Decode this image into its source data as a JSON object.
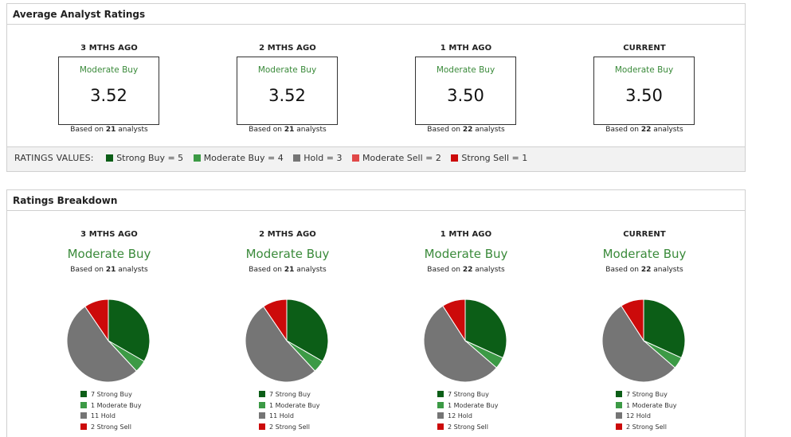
{
  "avg_panel": {
    "title": "Average Analyst Ratings",
    "columns": [
      {
        "period": "3 MTHS AGO",
        "rating": "Moderate Buy",
        "value": "3.52",
        "based_prefix": "Based on ",
        "count": "21",
        "based_suffix": " analysts"
      },
      {
        "period": "2 MTHS AGO",
        "rating": "Moderate Buy",
        "value": "3.52",
        "based_prefix": "Based on ",
        "count": "21",
        "based_suffix": " analysts"
      },
      {
        "period": "1 MTH AGO",
        "rating": "Moderate Buy",
        "value": "3.50",
        "based_prefix": "Based on ",
        "count": "22",
        "based_suffix": " analysts"
      },
      {
        "period": "CURRENT",
        "rating": "Moderate Buy",
        "value": "3.50",
        "based_prefix": "Based on ",
        "count": "22",
        "based_suffix": " analysts"
      }
    ],
    "ratings_values_title": "RATINGS VALUES:",
    "ratings_values": [
      {
        "label": "Strong Buy = 5",
        "color": "#0c5e17"
      },
      {
        "label": "Moderate Buy = 4",
        "color": "#3c9a45"
      },
      {
        "label": "Hold = 3",
        "color": "#757575"
      },
      {
        "label": "Moderate Sell = 2",
        "color": "#e04848"
      },
      {
        "label": "Strong Sell = 1",
        "color": "#cc0a0a"
      }
    ]
  },
  "breakdown_panel": {
    "title": "Ratings Breakdown",
    "columns": [
      {
        "period": "3 MTHS AGO",
        "rating": "Moderate Buy",
        "based_prefix": "Based on ",
        "count": "21",
        "based_suffix": " analysts",
        "legend": [
          "7 Strong Buy",
          "1 Moderate Buy",
          "11 Hold",
          "2 Strong Sell"
        ]
      },
      {
        "period": "2 MTHS AGO",
        "rating": "Moderate Buy",
        "based_prefix": "Based on ",
        "count": "21",
        "based_suffix": " analysts",
        "legend": [
          "7 Strong Buy",
          "1 Moderate Buy",
          "11 Hold",
          "2 Strong Sell"
        ]
      },
      {
        "period": "1 MTH AGO",
        "rating": "Moderate Buy",
        "based_prefix": "Based on ",
        "count": "22",
        "based_suffix": " analysts",
        "legend": [
          "7 Strong Buy",
          "1 Moderate Buy",
          "12 Hold",
          "2 Strong Sell"
        ]
      },
      {
        "period": "CURRENT",
        "rating": "Moderate Buy",
        "based_prefix": "Based on ",
        "count": "22",
        "based_suffix": " analysts",
        "legend": [
          "7 Strong Buy",
          "1 Moderate Buy",
          "12 Hold",
          "2 Strong Sell"
        ]
      }
    ]
  },
  "chart_data": [
    {
      "type": "pie",
      "categories": [
        "Strong Buy",
        "Moderate Buy",
        "Hold",
        "Strong Sell"
      ],
      "values": [
        7,
        1,
        11,
        2
      ],
      "colors": [
        "#0c5e17",
        "#3c9a45",
        "#757575",
        "#cc0a0a"
      ]
    },
    {
      "type": "pie",
      "categories": [
        "Strong Buy",
        "Moderate Buy",
        "Hold",
        "Strong Sell"
      ],
      "values": [
        7,
        1,
        11,
        2
      ],
      "colors": [
        "#0c5e17",
        "#3c9a45",
        "#757575",
        "#cc0a0a"
      ]
    },
    {
      "type": "pie",
      "categories": [
        "Strong Buy",
        "Moderate Buy",
        "Hold",
        "Strong Sell"
      ],
      "values": [
        7,
        1,
        12,
        2
      ],
      "colors": [
        "#0c5e17",
        "#3c9a45",
        "#757575",
        "#cc0a0a"
      ]
    },
    {
      "type": "pie",
      "categories": [
        "Strong Buy",
        "Moderate Buy",
        "Hold",
        "Strong Sell"
      ],
      "values": [
        7,
        1,
        12,
        2
      ],
      "colors": [
        "#0c5e17",
        "#3c9a45",
        "#757575",
        "#cc0a0a"
      ]
    }
  ]
}
